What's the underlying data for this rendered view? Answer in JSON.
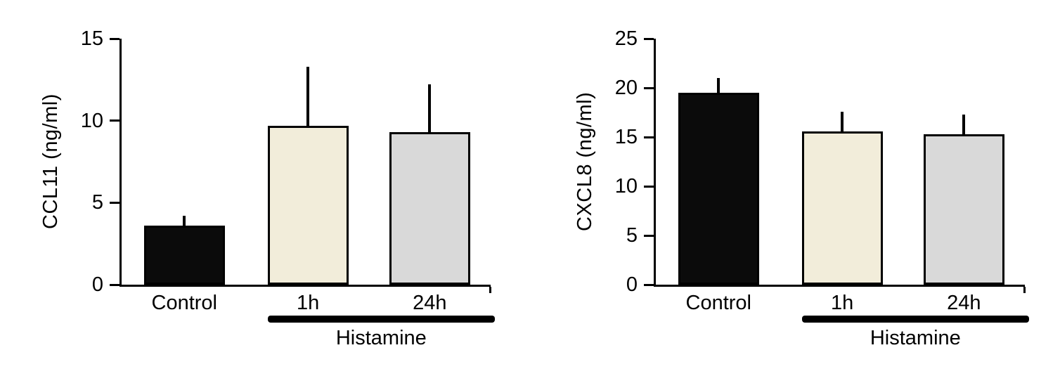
{
  "chart_data": [
    {
      "type": "bar",
      "title": "",
      "ylabel": "CCL11 (ng/ml)",
      "xlabel": "",
      "ylim": [
        0,
        15
      ],
      "yticks": [
        0,
        5,
        10,
        15
      ],
      "categories": [
        "Control",
        "1h",
        "24h"
      ],
      "values": [
        3.6,
        9.7,
        9.3
      ],
      "errors": [
        0.6,
        3.6,
        2.9
      ],
      "bar_colors": [
        "#0b0b0b",
        "#f2edda",
        "#d9d9d9"
      ],
      "bar_border_color": "#000000",
      "grid": false,
      "legend": "none",
      "group_annotation": {
        "label": "Histamine",
        "spans": [
          "1h",
          "24h"
        ]
      }
    },
    {
      "type": "bar",
      "title": "",
      "ylabel": "CXCL8 (ng/ml)",
      "xlabel": "",
      "ylim": [
        0,
        25
      ],
      "yticks": [
        0,
        5,
        10,
        15,
        20,
        25
      ],
      "categories": [
        "Control",
        "1h",
        "24h"
      ],
      "values": [
        19.5,
        15.6,
        15.3
      ],
      "errors": [
        1.5,
        2.0,
        2.0
      ],
      "bar_colors": [
        "#0b0b0b",
        "#f2edda",
        "#d9d9d9"
      ],
      "bar_border_color": "#000000",
      "grid": false,
      "legend": "none",
      "group_annotation": {
        "label": "Histamine",
        "spans": [
          "1h",
          "24h"
        ]
      }
    }
  ]
}
